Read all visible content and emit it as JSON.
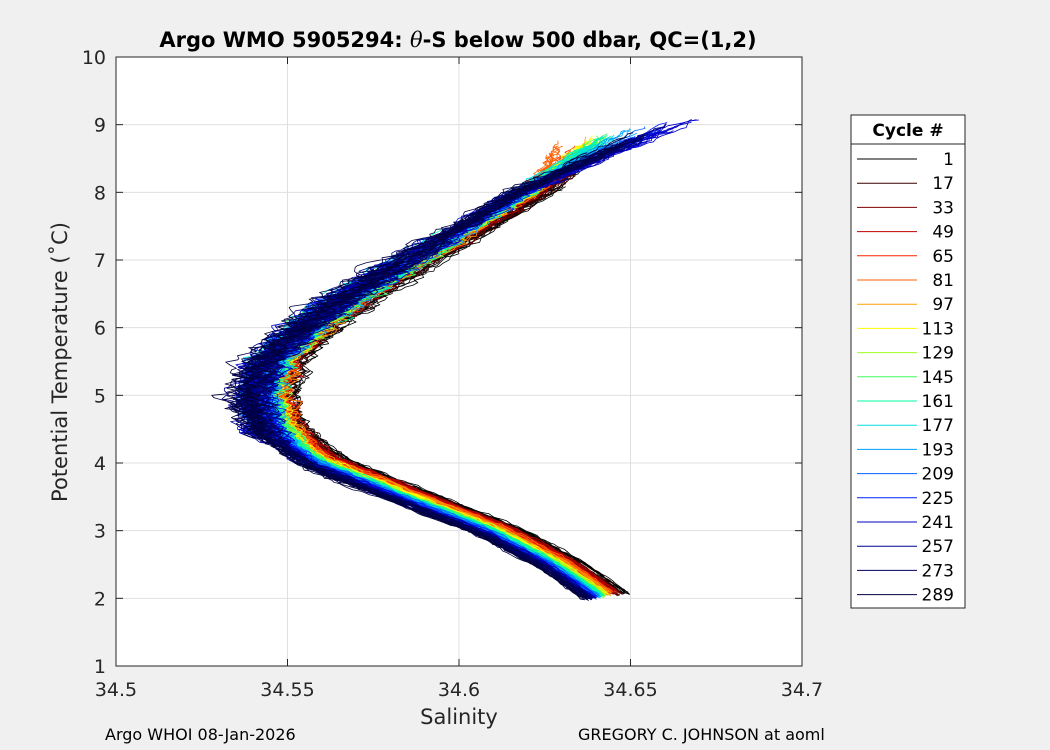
{
  "chart_data": {
    "type": "line",
    "title_prefix": "Argo WMO 5905294: ",
    "title_theta": "θ",
    "title_suffix": "-S below 500 dbar,  QC=(1,2)",
    "xlabel": "Salinity",
    "ylabel": "Potential Temperature (˚C)",
    "xlim": [
      34.5,
      34.7
    ],
    "ylim": [
      1,
      10
    ],
    "xticks": [
      34.5,
      34.55,
      34.6,
      34.65,
      34.7
    ],
    "xtick_labels": [
      "34.5",
      "34.55",
      "34.6",
      "34.65",
      "34.7"
    ],
    "yticks": [
      1,
      2,
      3,
      4,
      5,
      6,
      7,
      8,
      9,
      10
    ],
    "ytick_labels": [
      "1",
      "2",
      "3",
      "4",
      "5",
      "6",
      "7",
      "8",
      "9",
      "10"
    ],
    "grid": true,
    "legend_title": "Cycle #",
    "legend_position": "outside-right",
    "series": [
      {
        "name": "1",
        "color": "#000000",
        "shape": 0.6,
        "points": [
          [
            34.649,
            2.07
          ],
          [
            34.636,
            2.53
          ],
          [
            34.6175,
            3.03
          ],
          [
            34.5925,
            3.53
          ],
          [
            34.5675,
            4.03
          ],
          [
            34.5535,
            4.53
          ],
          [
            34.55,
            5.03
          ],
          [
            34.5535,
            5.53
          ],
          [
            34.5635,
            6.03
          ],
          [
            34.5775,
            6.53
          ],
          [
            34.594,
            7.03
          ],
          [
            34.611,
            7.53
          ],
          [
            34.627,
            8.03
          ],
          [
            34.6375,
            8.39
          ]
        ]
      },
      {
        "name": "17",
        "color": "#3a0000",
        "shape": 0.72,
        "points": [
          [
            34.647,
            2.06
          ],
          [
            34.634,
            2.52
          ],
          [
            34.6155,
            3.02
          ],
          [
            34.5905,
            3.52
          ],
          [
            34.5655,
            4.02
          ],
          [
            34.5515,
            4.52
          ],
          [
            34.548,
            5.02
          ],
          [
            34.5515,
            5.52
          ],
          [
            34.5615,
            6.02
          ],
          [
            34.5755,
            6.52
          ],
          [
            34.592,
            7.02
          ],
          [
            34.609,
            7.52
          ],
          [
            34.625,
            8.02
          ],
          [
            34.6385,
            8.44
          ]
        ]
      },
      {
        "name": "33",
        "color": "#800000",
        "shape": 0.8,
        "points": [
          [
            34.646,
            2.08
          ],
          [
            34.633,
            2.54
          ],
          [
            34.6145,
            3.04
          ],
          [
            34.5895,
            3.54
          ],
          [
            34.5645,
            4.04
          ],
          [
            34.5505,
            4.54
          ],
          [
            34.547,
            5.04
          ],
          [
            34.5505,
            5.54
          ],
          [
            34.5605,
            6.04
          ],
          [
            34.5745,
            6.54
          ],
          [
            34.591,
            7.04
          ],
          [
            34.608,
            7.54
          ],
          [
            34.624,
            8.04
          ],
          [
            34.6385,
            8.52
          ]
        ]
      },
      {
        "name": "49",
        "color": "#c00000",
        "shape": 0.85,
        "points": [
          [
            34.645,
            2.09
          ],
          [
            34.632,
            2.55
          ],
          [
            34.6135,
            3.05
          ],
          [
            34.5885,
            3.55
          ],
          [
            34.5635,
            4.05
          ],
          [
            34.5495,
            4.55
          ],
          [
            34.546,
            5.05
          ],
          [
            34.5495,
            5.55
          ],
          [
            34.5595,
            6.05
          ],
          [
            34.5735,
            6.55
          ],
          [
            34.59,
            7.05
          ],
          [
            34.607,
            7.55
          ],
          [
            34.623,
            8.05
          ],
          [
            34.639,
            8.62
          ]
        ]
      },
      {
        "name": "65",
        "color": "#ff2000",
        "shape": 0.9,
        "points": [
          [
            34.644,
            2.1
          ],
          [
            34.631,
            2.56
          ],
          [
            34.6125,
            3.06
          ],
          [
            34.5875,
            3.56
          ],
          [
            34.5625,
            4.06
          ],
          [
            34.5485,
            4.56
          ],
          [
            34.545,
            5.06
          ],
          [
            34.5485,
            5.56
          ],
          [
            34.5585,
            6.06
          ],
          [
            34.5725,
            6.56
          ],
          [
            34.589,
            7.06
          ],
          [
            34.606,
            7.56
          ],
          [
            34.622,
            8.06
          ],
          [
            34.635,
            8.72
          ]
        ]
      },
      {
        "name": "81",
        "color": "#ff6000",
        "shape": 0.95,
        "points": [
          [
            34.6435,
            2.08
          ],
          [
            34.6305,
            2.54
          ],
          [
            34.612,
            3.04
          ],
          [
            34.587,
            3.54
          ],
          [
            34.562,
            4.04
          ],
          [
            34.548,
            4.54
          ],
          [
            34.5445,
            5.04
          ],
          [
            34.548,
            5.54
          ],
          [
            34.558,
            6.04
          ],
          [
            34.572,
            6.54
          ],
          [
            34.5885,
            7.04
          ],
          [
            34.6055,
            7.54
          ],
          [
            34.6215,
            8.04
          ],
          [
            34.63,
            8.84
          ]
        ]
      },
      {
        "name": "97",
        "color": "#ffa000",
        "shape": 0.95,
        "points": [
          [
            34.643,
            2.07
          ],
          [
            34.63,
            2.53
          ],
          [
            34.6115,
            3.03
          ],
          [
            34.5865,
            3.53
          ],
          [
            34.5615,
            4.03
          ],
          [
            34.5475,
            4.53
          ],
          [
            34.544,
            5.03
          ],
          [
            34.5475,
            5.53
          ],
          [
            34.5575,
            6.03
          ],
          [
            34.5715,
            6.53
          ],
          [
            34.588,
            7.03
          ],
          [
            34.605,
            7.53
          ],
          [
            34.621,
            8.03
          ],
          [
            34.638,
            8.82
          ]
        ]
      },
      {
        "name": "113",
        "color": "#ffff00",
        "shape": 0.95,
        "points": [
          [
            34.6425,
            2.06
          ],
          [
            34.6295,
            2.52
          ],
          [
            34.611,
            3.02
          ],
          [
            34.586,
            3.52
          ],
          [
            34.561,
            4.02
          ],
          [
            34.547,
            4.52
          ],
          [
            34.5435,
            5.02
          ],
          [
            34.547,
            5.52
          ],
          [
            34.557,
            6.02
          ],
          [
            34.571,
            6.52
          ],
          [
            34.5875,
            7.02
          ],
          [
            34.6045,
            7.52
          ],
          [
            34.6205,
            8.02
          ],
          [
            34.64,
            8.86
          ]
        ]
      },
      {
        "name": "129",
        "color": "#a0ff20",
        "shape": 0.95,
        "points": [
          [
            34.642,
            2.05
          ],
          [
            34.629,
            2.51
          ],
          [
            34.6105,
            3.01
          ],
          [
            34.5855,
            3.51
          ],
          [
            34.5605,
            4.01
          ],
          [
            34.5465,
            4.51
          ],
          [
            34.543,
            5.01
          ],
          [
            34.5465,
            5.51
          ],
          [
            34.5565,
            6.01
          ],
          [
            34.5705,
            6.51
          ],
          [
            34.587,
            7.01
          ],
          [
            34.604,
            7.51
          ],
          [
            34.62,
            8.01
          ],
          [
            34.642,
            8.88
          ]
        ]
      },
      {
        "name": "145",
        "color": "#40ff60",
        "shape": 0.95,
        "points": [
          [
            34.6415,
            2.04
          ],
          [
            34.6285,
            2.5
          ],
          [
            34.61,
            3.0
          ],
          [
            34.585,
            3.5
          ],
          [
            34.56,
            4.0
          ],
          [
            34.546,
            4.5
          ],
          [
            34.5425,
            5.0
          ],
          [
            34.546,
            5.5
          ],
          [
            34.556,
            6.0
          ],
          [
            34.57,
            6.5
          ],
          [
            34.5865,
            7.0
          ],
          [
            34.6035,
            7.5
          ],
          [
            34.6195,
            8.0
          ],
          [
            34.644,
            8.9
          ]
        ]
      },
      {
        "name": "161",
        "color": "#00ffa0",
        "shape": 0.95,
        "points": [
          [
            34.641,
            2.05
          ],
          [
            34.628,
            2.51
          ],
          [
            34.6095,
            3.01
          ],
          [
            34.5845,
            3.51
          ],
          [
            34.5595,
            4.01
          ],
          [
            34.5455,
            4.51
          ],
          [
            34.542,
            5.01
          ],
          [
            34.5455,
            5.51
          ],
          [
            34.5555,
            6.01
          ],
          [
            34.5695,
            6.51
          ],
          [
            34.586,
            7.01
          ],
          [
            34.603,
            7.51
          ],
          [
            34.619,
            8.01
          ],
          [
            34.646,
            8.92
          ]
        ]
      },
      {
        "name": "177",
        "color": "#00e0e0",
        "shape": 0.95,
        "points": [
          [
            34.6405,
            2.04
          ],
          [
            34.6275,
            2.5
          ],
          [
            34.609,
            3.0
          ],
          [
            34.584,
            3.5
          ],
          [
            34.559,
            4.0
          ],
          [
            34.545,
            4.5
          ],
          [
            34.5415,
            5.0
          ],
          [
            34.545,
            5.5
          ],
          [
            34.555,
            6.0
          ],
          [
            34.569,
            6.5
          ],
          [
            34.5855,
            7.0
          ],
          [
            34.6025,
            7.5
          ],
          [
            34.6185,
            8.0
          ],
          [
            34.648,
            8.94
          ]
        ]
      },
      {
        "name": "193",
        "color": "#00a0ff",
        "shape": 0.95,
        "points": [
          [
            34.64,
            2.03
          ],
          [
            34.627,
            2.49
          ],
          [
            34.6085,
            2.99
          ],
          [
            34.5835,
            3.49
          ],
          [
            34.5585,
            3.99
          ],
          [
            34.5445,
            4.49
          ],
          [
            34.541,
            4.99
          ],
          [
            34.5445,
            5.49
          ],
          [
            34.5545,
            5.99
          ],
          [
            34.5685,
            6.49
          ],
          [
            34.585,
            6.99
          ],
          [
            34.602,
            7.49
          ],
          [
            34.618,
            7.99
          ],
          [
            34.652,
            8.96
          ]
        ]
      },
      {
        "name": "209",
        "color": "#0060ff",
        "shape": 0.95,
        "points": [
          [
            34.6395,
            2.02
          ],
          [
            34.6265,
            2.48
          ],
          [
            34.608,
            2.98
          ],
          [
            34.583,
            3.48
          ],
          [
            34.558,
            3.98
          ],
          [
            34.544,
            4.48
          ],
          [
            34.5405,
            4.98
          ],
          [
            34.544,
            5.48
          ],
          [
            34.554,
            5.98
          ],
          [
            34.568,
            6.48
          ],
          [
            34.5845,
            6.98
          ],
          [
            34.6015,
            7.48
          ],
          [
            34.6175,
            7.98
          ],
          [
            34.656,
            8.98
          ]
        ]
      },
      {
        "name": "225",
        "color": "#0020ff",
        "shape": 0.95,
        "points": [
          [
            34.639,
            2.01
          ],
          [
            34.626,
            2.47
          ],
          [
            34.6075,
            2.97
          ],
          [
            34.5825,
            3.47
          ],
          [
            34.5575,
            3.97
          ],
          [
            34.5435,
            4.47
          ],
          [
            34.54,
            4.97
          ],
          [
            34.5435,
            5.47
          ],
          [
            34.5535,
            5.97
          ],
          [
            34.5675,
            6.47
          ],
          [
            34.584,
            6.97
          ],
          [
            34.601,
            7.47
          ],
          [
            34.617,
            7.97
          ],
          [
            34.662,
            9.02
          ]
        ]
      },
      {
        "name": "241",
        "color": "#0000c8",
        "shape": 1.05,
        "points": [
          [
            34.6385,
            2.0
          ],
          [
            34.6255,
            2.46
          ],
          [
            34.607,
            2.96
          ],
          [
            34.582,
            3.46
          ],
          [
            34.557,
            3.96
          ],
          [
            34.543,
            4.46
          ],
          [
            34.5395,
            4.96
          ],
          [
            34.543,
            5.46
          ],
          [
            34.553,
            5.96
          ],
          [
            34.567,
            6.46
          ],
          [
            34.5835,
            6.96
          ],
          [
            34.6005,
            7.46
          ],
          [
            34.6165,
            7.96
          ],
          [
            34.671,
            9.12
          ]
        ]
      },
      {
        "name": "257",
        "color": "#000090",
        "shape": 1.05,
        "points": [
          [
            34.638,
            2.01
          ],
          [
            34.625,
            2.47
          ],
          [
            34.6065,
            2.97
          ],
          [
            34.5815,
            3.47
          ],
          [
            34.5565,
            3.97
          ],
          [
            34.5425,
            4.47
          ],
          [
            34.539,
            4.97
          ],
          [
            34.5425,
            5.47
          ],
          [
            34.5525,
            5.97
          ],
          [
            34.5665,
            6.47
          ],
          [
            34.583,
            6.97
          ],
          [
            34.6,
            7.47
          ],
          [
            34.616,
            7.97
          ],
          [
            34.664,
            9.04
          ]
        ]
      },
      {
        "name": "273",
        "color": "#000060",
        "shape": 1.05,
        "points": [
          [
            34.6375,
            2.0
          ],
          [
            34.6245,
            2.46
          ],
          [
            34.606,
            2.96
          ],
          [
            34.581,
            3.46
          ],
          [
            34.556,
            3.96
          ],
          [
            34.542,
            4.46
          ],
          [
            34.5385,
            4.96
          ],
          [
            34.542,
            5.46
          ],
          [
            34.552,
            5.96
          ],
          [
            34.566,
            6.46
          ],
          [
            34.5825,
            6.96
          ],
          [
            34.5995,
            7.46
          ],
          [
            34.6155,
            7.96
          ],
          [
            34.658,
            8.94
          ]
        ]
      },
      {
        "name": "289",
        "color": "#000040",
        "shape": 1.05,
        "points": [
          [
            34.637,
            1.99
          ],
          [
            34.624,
            2.45
          ],
          [
            34.6055,
            2.95
          ],
          [
            34.5805,
            3.45
          ],
          [
            34.5555,
            3.95
          ],
          [
            34.5415,
            4.45
          ],
          [
            34.538,
            4.95
          ],
          [
            34.5415,
            5.45
          ],
          [
            34.5515,
            5.95
          ],
          [
            34.5655,
            6.45
          ],
          [
            34.582,
            6.95
          ],
          [
            34.599,
            7.45
          ],
          [
            34.615,
            7.95
          ],
          [
            34.654,
            8.9
          ]
        ]
      }
    ]
  },
  "footer": {
    "left": "Argo WHOI 08-Jan-2026",
    "right": "GREGORY C. JOHNSON at aoml"
  }
}
